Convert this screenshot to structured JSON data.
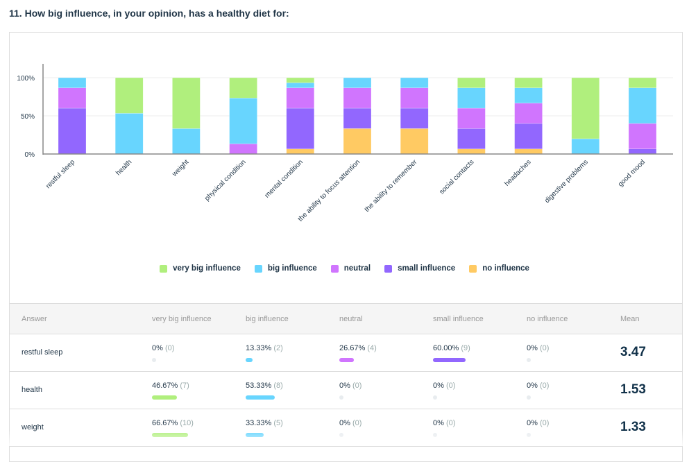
{
  "question": "11. How big influence, in your opinion, has a healthy diet for:",
  "colors": {
    "very big influence": "#b0ef7d",
    "big influence": "#68d5fe",
    "neutral": "#d075fe",
    "small influence": "#9267fe",
    "no influence": "#ffca63"
  },
  "chart_data": {
    "type": "bar",
    "stacked": true,
    "ylim": [
      0,
      100
    ],
    "yticks": [
      "0%",
      "50%",
      "100%"
    ],
    "categories": [
      "restful sleep",
      "health",
      "weight",
      "physical condition",
      "mental condition",
      "the ability to focus attention",
      "the ability to remember",
      "social contacts",
      "headaches",
      "digestive problems",
      "good mood"
    ],
    "series": [
      {
        "name": "very big influence",
        "values": [
          0,
          46.67,
          66.67,
          26.67,
          6.67,
          0,
          0,
          13.33,
          13.33,
          80,
          13.33
        ]
      },
      {
        "name": "big influence",
        "values": [
          13.33,
          53.33,
          33.33,
          60,
          6.67,
          13.33,
          13.33,
          26.67,
          20,
          20,
          46.67
        ]
      },
      {
        "name": "neutral",
        "values": [
          26.67,
          0,
          0,
          13.33,
          26.67,
          26.67,
          26.67,
          26.67,
          26.67,
          0,
          33.33
        ]
      },
      {
        "name": "small influence",
        "values": [
          60,
          0,
          0,
          0,
          53.33,
          26.67,
          26.67,
          26.67,
          33.33,
          0,
          6.67
        ]
      },
      {
        "name": "no influence",
        "values": [
          0,
          0,
          0,
          0,
          6.67,
          33.33,
          33.33,
          6.67,
          6.67,
          0,
          0
        ]
      }
    ],
    "legend": "bottom",
    "grid": true
  },
  "legend": [
    "very big influence",
    "big influence",
    "neutral",
    "small influence",
    "no influence"
  ],
  "table": {
    "headers": [
      "Answer",
      "very big influence",
      "big influence",
      "neutral",
      "small influence",
      "no influence",
      "Mean"
    ],
    "rows": [
      {
        "answer": "restful sleep",
        "cells": [
          {
            "pct": "0%",
            "cnt": "(0)",
            "v": 0
          },
          {
            "pct": "13.33%",
            "cnt": "(2)",
            "v": 13.33
          },
          {
            "pct": "26.67%",
            "cnt": "(4)",
            "v": 26.67
          },
          {
            "pct": "60.00%",
            "cnt": "(9)",
            "v": 60
          },
          {
            "pct": "0%",
            "cnt": "(0)",
            "v": 0
          }
        ],
        "mean": "3.47"
      },
      {
        "answer": "health",
        "cells": [
          {
            "pct": "46.67%",
            "cnt": "(7)",
            "v": 46.67
          },
          {
            "pct": "53.33%",
            "cnt": "(8)",
            "v": 53.33
          },
          {
            "pct": "0%",
            "cnt": "(0)",
            "v": 0
          },
          {
            "pct": "0%",
            "cnt": "(0)",
            "v": 0
          },
          {
            "pct": "0%",
            "cnt": "(0)",
            "v": 0
          }
        ],
        "mean": "1.53"
      },
      {
        "answer": "weight",
        "cells": [
          {
            "pct": "66.67%",
            "cnt": "(10)",
            "v": 66.67
          },
          {
            "pct": "33.33%",
            "cnt": "(5)",
            "v": 33.33
          },
          {
            "pct": "0%",
            "cnt": "(0)",
            "v": 0
          },
          {
            "pct": "0%",
            "cnt": "(0)",
            "v": 0
          },
          {
            "pct": "0%",
            "cnt": "(0)",
            "v": 0
          }
        ],
        "mean": "1.33"
      }
    ]
  }
}
